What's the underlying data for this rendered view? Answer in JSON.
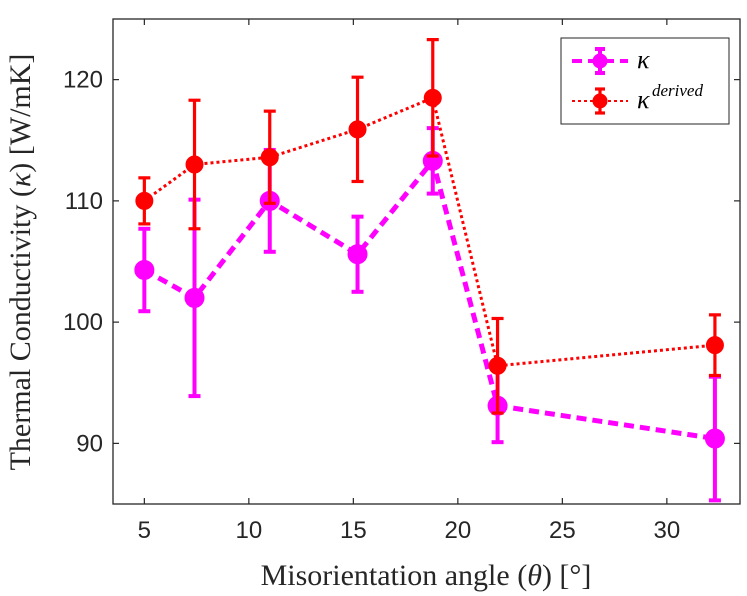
{
  "chart_data": {
    "type": "line",
    "xlabel_prefix": "Misorientation angle (",
    "xlabel_symbol": "θ",
    "xlabel_suffix": ") [°]",
    "ylabel_prefix": "Thermal Conductivity (",
    "ylabel_symbol": "κ",
    "ylabel_suffix": ") [W/mK]",
    "xlim": [
      3.5,
      33.5
    ],
    "ylim": [
      85,
      125
    ],
    "xticks": [
      5,
      10,
      15,
      20,
      25,
      30
    ],
    "yticks": [
      90,
      100,
      110,
      120
    ],
    "grid": false,
    "legend_position": "top-right",
    "series": [
      {
        "key": "kappa",
        "name": "κ",
        "name_sup": "",
        "color": "#ff00ff",
        "line_style": "dashed",
        "x": [
          5.0,
          7.4,
          11.0,
          15.2,
          18.8,
          21.9,
          32.3
        ],
        "y": [
          104.3,
          102.0,
          110.0,
          105.6,
          113.3,
          93.1,
          90.4
        ],
        "err": [
          3.4,
          8.1,
          4.2,
          3.1,
          2.7,
          3.0,
          5.1
        ]
      },
      {
        "key": "kappa_derived",
        "name": "κ",
        "name_sup": "derived",
        "color": "#ff0000",
        "line_style": "dotted",
        "x": [
          5.0,
          7.4,
          11.0,
          15.2,
          18.8,
          21.9,
          32.3
        ],
        "y": [
          110.0,
          113.0,
          113.6,
          115.9,
          118.5,
          96.4,
          98.1
        ],
        "err": [
          1.9,
          5.3,
          3.8,
          4.3,
          4.8,
          3.9,
          2.5
        ]
      }
    ]
  }
}
